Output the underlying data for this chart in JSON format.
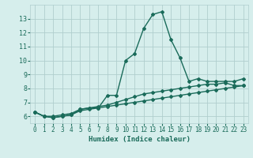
{
  "xlabel": "Humidex (Indice chaleur)",
  "x": [
    0,
    1,
    2,
    3,
    4,
    5,
    6,
    7,
    8,
    9,
    10,
    11,
    12,
    13,
    14,
    15,
    16,
    17,
    18,
    19,
    20,
    21,
    22,
    23
  ],
  "line1": [
    6.3,
    6.0,
    5.9,
    6.0,
    6.1,
    6.5,
    6.6,
    6.6,
    7.5,
    7.5,
    10.0,
    10.5,
    12.3,
    13.3,
    13.5,
    11.5,
    10.2,
    8.5,
    8.7,
    8.5,
    8.5,
    8.5,
    8.5,
    8.7
  ],
  "line2": [
    6.3,
    6.0,
    6.0,
    6.1,
    6.2,
    6.5,
    6.6,
    6.7,
    6.8,
    7.0,
    7.2,
    7.4,
    7.6,
    7.7,
    7.8,
    7.9,
    8.0,
    8.1,
    8.2,
    8.3,
    8.3,
    8.4,
    8.2,
    8.2
  ],
  "line3": [
    6.3,
    6.0,
    5.9,
    6.0,
    6.1,
    6.4,
    6.5,
    6.6,
    6.7,
    6.8,
    6.9,
    7.0,
    7.1,
    7.2,
    7.3,
    7.4,
    7.5,
    7.6,
    7.7,
    7.8,
    7.9,
    8.0,
    8.1,
    8.2
  ],
  "line_color": "#1a6b5a",
  "bg_color": "#d6eeec",
  "grid_color": "#b0cece",
  "ylim": [
    5.5,
    14.0
  ],
  "xlim": [
    -0.5,
    23.5
  ],
  "yticks": [
    6,
    7,
    8,
    9,
    10,
    11,
    12,
    13
  ],
  "xticks": [
    0,
    1,
    2,
    3,
    4,
    5,
    6,
    7,
    8,
    9,
    10,
    11,
    12,
    13,
    14,
    15,
    16,
    17,
    18,
    19,
    20,
    21,
    22,
    23
  ],
  "xlabel_fontsize": 6.5,
  "tick_labelsize": 5.5,
  "marker_size": 2.0,
  "linewidth": 1.0
}
